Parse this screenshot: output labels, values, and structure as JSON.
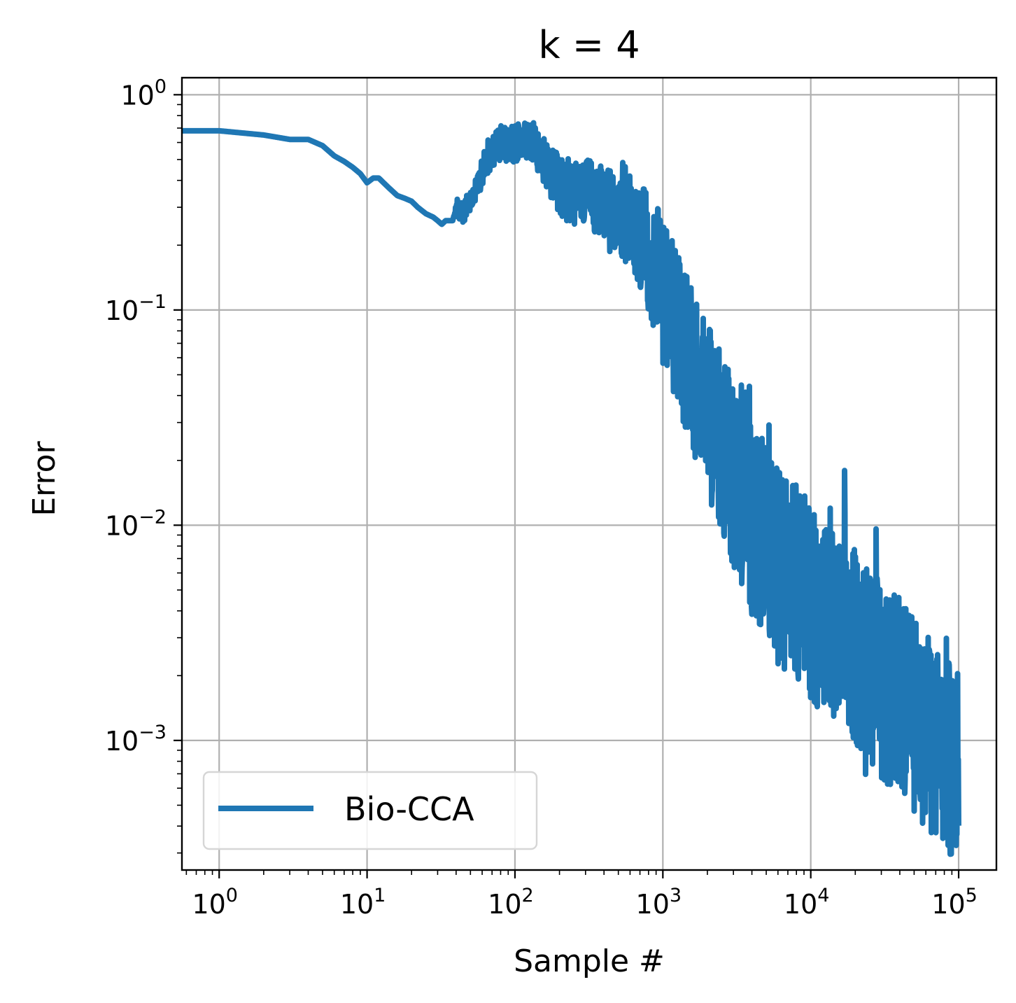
{
  "chart_data": {
    "type": "line",
    "title": "k = 4",
    "xlabel": "Sample #",
    "ylabel": "Error",
    "x_scale": "log",
    "y_scale": "log",
    "xlim": [
      0.56,
      180000
    ],
    "ylim": [
      0.00025,
      1.2
    ],
    "grid": true,
    "legend_position": "lower-left",
    "x_ticks": [
      {
        "base": "10",
        "exp": "0",
        "value": 1
      },
      {
        "base": "10",
        "exp": "1",
        "value": 10
      },
      {
        "base": "10",
        "exp": "2",
        "value": 100
      },
      {
        "base": "10",
        "exp": "3",
        "value": 1000
      },
      {
        "base": "10",
        "exp": "4",
        "value": 10000
      },
      {
        "base": "10",
        "exp": "5",
        "value": 100000
      }
    ],
    "y_ticks": [
      {
        "base": "10",
        "exp": "0",
        "value": 1
      },
      {
        "base": "10",
        "exp": "−1",
        "value": 0.1
      },
      {
        "base": "10",
        "exp": "−2",
        "value": 0.01
      },
      {
        "base": "10",
        "exp": "−3",
        "value": 0.001
      }
    ],
    "series": [
      {
        "name": "Bio-CCA",
        "color": "#1f77b4",
        "x": [
          0.56,
          1,
          2,
          3,
          4,
          5,
          6,
          7,
          8,
          9,
          10,
          11,
          12,
          14,
          16,
          18,
          20,
          22,
          25,
          28,
          30,
          32,
          34,
          36,
          38,
          40,
          45,
          50,
          55,
          60,
          65,
          70,
          75,
          80,
          90,
          100,
          110,
          120,
          130,
          150,
          170,
          200,
          230,
          260,
          300,
          350,
          400,
          450,
          500,
          550,
          600,
          650,
          700,
          750,
          800,
          850,
          900,
          950,
          1000,
          1200,
          1500,
          2000,
          2500,
          3000,
          4000,
          5000,
          6000,
          8000,
          10000,
          12000,
          15000,
          20000,
          25000,
          30000,
          40000,
          50000,
          60000,
          70000,
          80000,
          90000,
          100000
        ],
        "y": [
          0.68,
          0.68,
          0.65,
          0.62,
          0.62,
          0.58,
          0.52,
          0.49,
          0.46,
          0.43,
          0.39,
          0.41,
          0.41,
          0.37,
          0.34,
          0.33,
          0.32,
          0.3,
          0.28,
          0.27,
          0.26,
          0.25,
          0.26,
          0.26,
          0.26,
          0.3,
          0.28,
          0.32,
          0.36,
          0.44,
          0.5,
          0.55,
          0.58,
          0.6,
          0.58,
          0.6,
          0.63,
          0.62,
          0.6,
          0.52,
          0.44,
          0.38,
          0.36,
          0.34,
          0.35,
          0.33,
          0.32,
          0.3,
          0.27,
          0.26,
          0.25,
          0.24,
          0.22,
          0.2,
          0.18,
          0.16,
          0.15,
          0.14,
          0.12,
          0.09,
          0.06,
          0.035,
          0.024,
          0.017,
          0.011,
          0.008,
          0.0065,
          0.0055,
          0.0045,
          0.0038,
          0.0032,
          0.0027,
          0.0022,
          0.0019,
          0.0016,
          0.0013,
          0.0011,
          0.00095,
          0.00085,
          0.0008,
          0.00075
        ],
        "noise_band": [
          0,
          0,
          0,
          0,
          0,
          0,
          0,
          0,
          0,
          0,
          0,
          0,
          0,
          0,
          0,
          0,
          0,
          0,
          0,
          0,
          0,
          0,
          0,
          0,
          0,
          0.05,
          0.05,
          0.05,
          0.06,
          0.07,
          0.07,
          0.08,
          0.08,
          0.08,
          0.08,
          0.09,
          0.09,
          0.1,
          0.1,
          0.12,
          0.12,
          0.14,
          0.15,
          0.15,
          0.16,
          0.16,
          0.17,
          0.18,
          0.18,
          0.2,
          0.2,
          0.22,
          0.24,
          0.26,
          0.28,
          0.3,
          0.3,
          0.32,
          0.34,
          0.36,
          0.38,
          0.4,
          0.42,
          0.44,
          0.46,
          0.46,
          0.46,
          0.46,
          0.46,
          0.46,
          0.46,
          0.46,
          0.46,
          0.46,
          0.46,
          0.46,
          0.46,
          0.46,
          0.46,
          0.46,
          0.46
        ]
      }
    ]
  }
}
